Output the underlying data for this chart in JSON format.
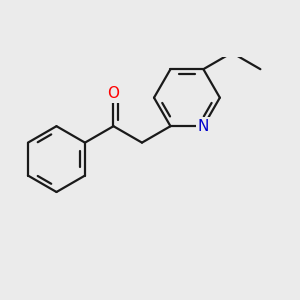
{
  "background_color": "#ebebeb",
  "bond_color": "#1a1a1a",
  "bond_width": 1.6,
  "atom_colors": {
    "O": "#ff0000",
    "N": "#0000cc"
  },
  "font_size_atoms": 11
}
